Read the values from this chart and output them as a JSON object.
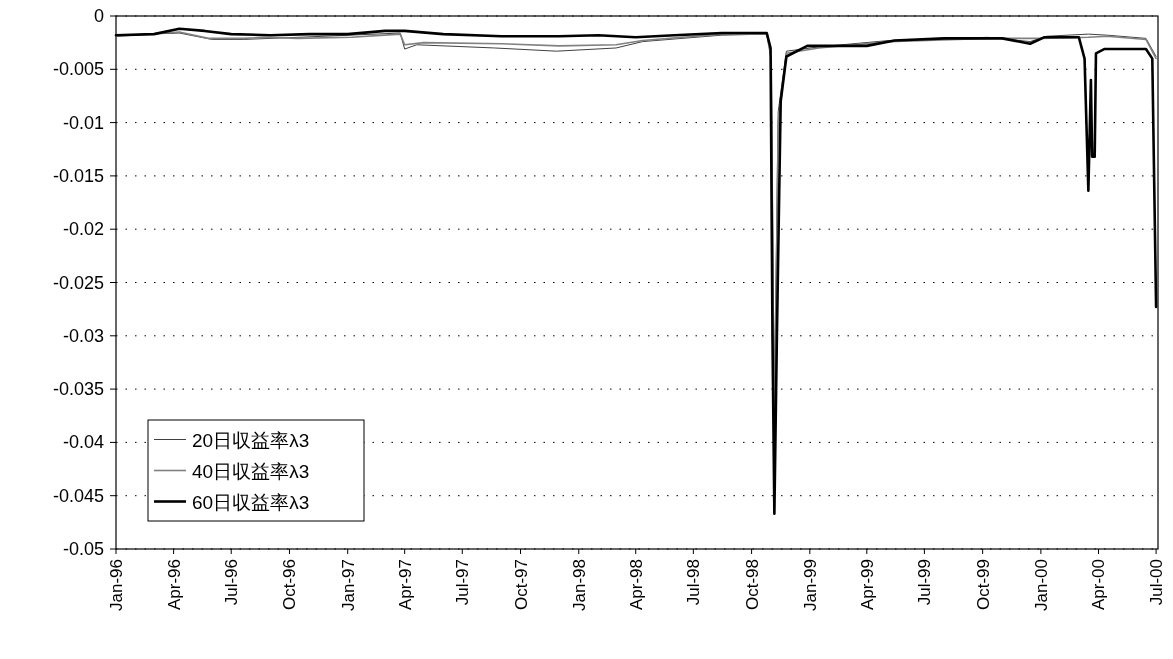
{
  "chart_data": {
    "type": "line",
    "xlim": [
      "1996-01-01",
      "2000-07-04"
    ],
    "xticks": [
      {
        "value": "1996-01",
        "label": "Jan-96"
      },
      {
        "value": "1996-04",
        "label": "Apr-96"
      },
      {
        "value": "1996-07",
        "label": "Jul-96"
      },
      {
        "value": "1996-10",
        "label": "Oct-96"
      },
      {
        "value": "1997-01",
        "label": "Jan-97"
      },
      {
        "value": "1997-04",
        "label": "Apr-97"
      },
      {
        "value": "1997-07",
        "label": "Jul-97"
      },
      {
        "value": "1997-10",
        "label": "Oct-97"
      },
      {
        "value": "1998-01",
        "label": "Jan-98"
      },
      {
        "value": "1998-04",
        "label": "Apr-98"
      },
      {
        "value": "1998-07",
        "label": "Jul-98"
      },
      {
        "value": "1998-10",
        "label": "Oct-98"
      },
      {
        "value": "1999-01",
        "label": "Jan-99"
      },
      {
        "value": "1999-04",
        "label": "Apr-99"
      },
      {
        "value": "1999-07",
        "label": "Jul-99"
      },
      {
        "value": "1999-10",
        "label": "Oct-99"
      },
      {
        "value": "2000-01",
        "label": "Jan-00"
      },
      {
        "value": "2000-04",
        "label": "Apr-00"
      },
      {
        "value": "2000-07",
        "label": "Jul-00"
      }
    ],
    "ylim": [
      -0.05,
      0
    ],
    "yticks": [
      0,
      -0.005,
      -0.01,
      -0.015,
      -0.02,
      -0.025,
      -0.03,
      -0.035,
      -0.04,
      -0.045,
      -0.05
    ],
    "grid": "y",
    "legend": "bottom left",
    "series": [
      {
        "name": "20日収益率λ3",
        "color": "#404040",
        "x": [
          "1996-01-01",
          "1996-04-10",
          "1996-06-01",
          "1996-07-20",
          "1996-10-14",
          "1997-03-25",
          "1997-04-01",
          "1997-04-20",
          "1997-08-21",
          "1997-11-27",
          "1998-03-01",
          "1998-04-12",
          "1998-08-14",
          "1998-10-25",
          "1998-11-01",
          "1998-11-06",
          "1998-11-12",
          "1998-11-25",
          "1999-01-15",
          "1999-05-06",
          "1999-10-09",
          "1999-12-15",
          "2000-01-10",
          "2000-03-16",
          "2000-04-15",
          "2000-06-15",
          "2000-07-01"
        ],
        "values": [
          -0.0018,
          -0.0016,
          -0.0022,
          -0.0022,
          -0.002,
          -0.0016,
          -0.0031,
          -0.0027,
          -0.003,
          -0.0033,
          -0.003,
          -0.0024,
          -0.0018,
          -0.0017,
          -0.004,
          -0.036,
          -0.009,
          -0.0033,
          -0.0029,
          -0.0023,
          -0.002,
          -0.0024,
          -0.0019,
          -0.0017,
          -0.0018,
          -0.0021,
          -0.0038
        ]
      },
      {
        "name": "40日収益率λ3",
        "color": "#808080",
        "x": [
          "1996-01-01",
          "1996-04-10",
          "1996-05-26",
          "1996-07-20",
          "1996-08-20",
          "1996-10-14",
          "1997-01-07",
          "1997-03-25",
          "1997-04-01",
          "1997-05-01",
          "1997-09-01",
          "1997-12-01",
          "1998-03-01",
          "1998-04-12",
          "1998-08-14",
          "1998-10-25",
          "1998-11-01",
          "1998-11-06",
          "1998-11-12",
          "1998-11-25",
          "1999-01-15",
          "1999-05-06",
          "1999-10-09",
          "2000-01-01",
          "2000-03-16",
          "2000-04-15",
          "2000-06-15",
          "2000-07-01"
        ],
        "values": [
          -0.0019,
          -0.0015,
          -0.0021,
          -0.0021,
          -0.002,
          -0.0021,
          -0.002,
          -0.0017,
          -0.0027,
          -0.0025,
          -0.0026,
          -0.0028,
          -0.0027,
          -0.0023,
          -0.0017,
          -0.0017,
          -0.004,
          -0.041,
          -0.01,
          -0.0035,
          -0.003,
          -0.0024,
          -0.0021,
          -0.0021,
          -0.002,
          -0.0019,
          -0.0022,
          -0.004
        ]
      },
      {
        "name": "60日収益率λ3",
        "color": "#000000",
        "x": [
          "1996-01-01",
          "1996-03-01",
          "1996-04-10",
          "1996-05-20",
          "1996-07-01",
          "1996-09-01",
          "1996-11-01",
          "1997-01-01",
          "1997-03-01",
          "1997-04-01",
          "1997-06-01",
          "1997-09-01",
          "1997-12-01",
          "1998-02-01",
          "1998-04-01",
          "1998-06-01",
          "1998-08-15",
          "1998-10-25",
          "1998-10-31",
          "1998-11-03",
          "1998-11-06",
          "1998-11-10",
          "1998-11-16",
          "1998-11-25",
          "1998-12-28",
          "1999-04-01",
          "1999-05-15",
          "1999-08-01",
          "1999-11-01",
          "1999-12-15",
          "2000-01-06",
          "2000-03-01",
          "2000-03-10",
          "2000-03-16",
          "2000-03-20",
          "2000-03-22",
          "2000-03-26",
          "2000-03-28",
          "2000-04-10",
          "2000-06-15",
          "2000-06-25",
          "2000-07-01"
        ],
        "values": [
          -0.0018,
          -0.0017,
          -0.0012,
          -0.0014,
          -0.0017,
          -0.0018,
          -0.0017,
          -0.0017,
          -0.0014,
          -0.0014,
          -0.0017,
          -0.0019,
          -0.0019,
          -0.0018,
          -0.002,
          -0.0018,
          -0.0016,
          -0.0016,
          -0.003,
          -0.03,
          -0.0467,
          -0.03,
          -0.008,
          -0.0038,
          -0.0028,
          -0.0028,
          -0.0023,
          -0.0021,
          -0.0021,
          -0.0026,
          -0.002,
          -0.002,
          -0.004,
          -0.0164,
          -0.006,
          -0.0132,
          -0.0132,
          -0.0035,
          -0.0031,
          -0.0031,
          -0.004,
          -0.0273
        ]
      }
    ]
  }
}
